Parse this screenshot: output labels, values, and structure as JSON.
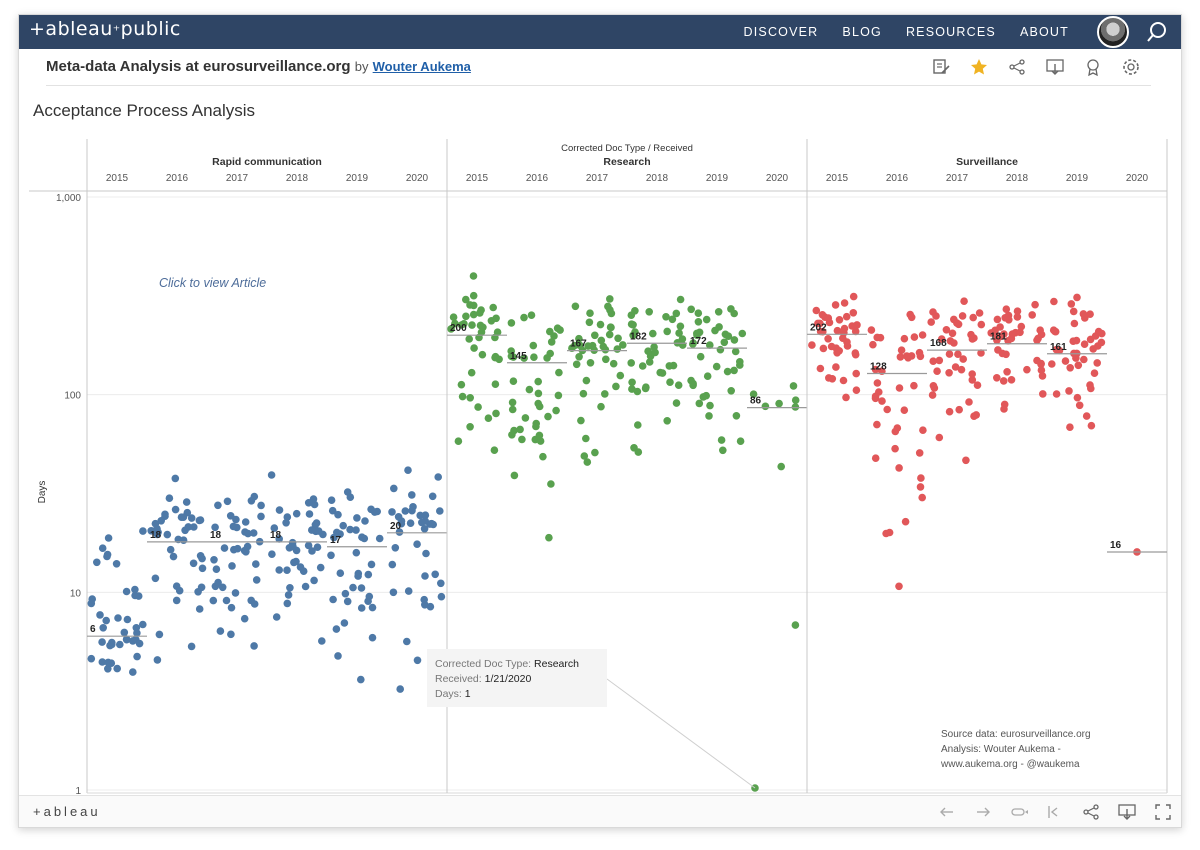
{
  "topnav": {
    "logo_left": "+ableau",
    "logo_right": "public",
    "items": [
      "DISCOVER",
      "BLOG",
      "RESOURCES",
      "ABOUT"
    ]
  },
  "viz": {
    "title": "Meta-data Analysis at eurosurveillance.org",
    "by": "by",
    "author": "Wouter Aukema"
  },
  "dashboard": {
    "title": "Acceptance Process Analysis"
  },
  "colors": {
    "Rapid communication": "#4e79a7",
    "Research": "#59a14f",
    "Surveillance": "#e15759",
    "nav": "#2f4565",
    "star": "#f0b323"
  },
  "annotation": "Click to view Article",
  "source_note": [
    "Source data: eurosurveillance.org",
    "Analysis: Wouter Aukema -",
    "www.aukema.org - @waukema"
  ],
  "tooltip": {
    "rows": [
      {
        "label": "Corrected Doc Type:",
        "value": "Research"
      },
      {
        "label": "Received:",
        "value": "1/21/2020"
      },
      {
        "label": "Days:",
        "value": "1"
      }
    ]
  },
  "bottom": {
    "brand": "+ableau"
  },
  "chart_data": {
    "type": "scatter",
    "title": "",
    "column_header": "Corrected Doc Type / Received",
    "ylabel": "Days",
    "yscale": "log",
    "ylim": [
      1,
      1000
    ],
    "yticks": [
      "1,000",
      "100",
      "10",
      "1"
    ],
    "grid": true,
    "years": [
      "2015",
      "2016",
      "2017",
      "2018",
      "2019",
      "2020"
    ],
    "panels": [
      {
        "name": "Rapid communication",
        "medians": [
          6,
          18,
          18,
          18,
          17,
          20
        ],
        "ranges": [
          [
            2.5,
            55
          ],
          [
            3,
            55
          ],
          [
            3,
            40
          ],
          [
            3,
            42
          ],
          [
            3,
            45
          ],
          [
            2,
            52
          ]
        ]
      },
      {
        "name": "Research",
        "medians": [
          200,
          145,
          167,
          182,
          172,
          86
        ],
        "ranges": [
          [
            30,
            440
          ],
          [
            13,
            330
          ],
          [
            12,
            360
          ],
          [
            30,
            380
          ],
          [
            30,
            410
          ],
          [
            1,
            130
          ]
        ]
      },
      {
        "name": "Surveillance",
        "medians": [
          202,
          128,
          168,
          181,
          161,
          16
        ],
        "ranges": [
          [
            70,
            390
          ],
          [
            6,
            360
          ],
          [
            20,
            370
          ],
          [
            30,
            340
          ],
          [
            27,
            380
          ],
          [
            16,
            16
          ]
        ]
      }
    ]
  }
}
